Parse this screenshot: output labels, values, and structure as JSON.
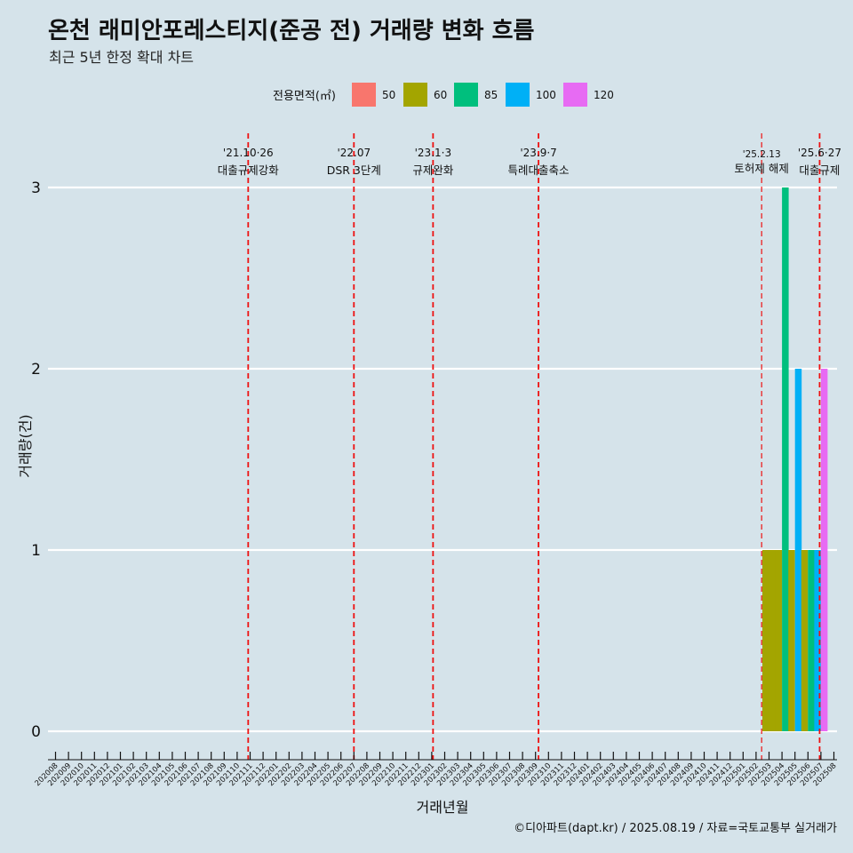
{
  "title": "온천 래미안포레스티지(준공 전) 거래량 변화 흐름",
  "subtitle": "최근 5년 한정 확대 차트",
  "caption": "©디아파트(dapt.kr) / 2025.08.19 / 자료=국토교통부 실거래가",
  "colors": {
    "background": "#d5e3ea",
    "grid": "#ffffff",
    "event_line": "#ee1111"
  },
  "chart_data": {
    "type": "bar",
    "xlabel": "거래년월",
    "ylabel": "거래량(건)",
    "ylim": [
      0,
      3
    ],
    "yticks": [
      0,
      1,
      2,
      3
    ],
    "grid": true,
    "legend": {
      "title": "전용면적(㎡)",
      "position": "top",
      "items": [
        {
          "name": "50",
          "color": "#f8766d"
        },
        {
          "name": "60",
          "color": "#a3a500"
        },
        {
          "name": "85",
          "color": "#00bf7d"
        },
        {
          "name": "100",
          "color": "#00b0f6"
        },
        {
          "name": "120",
          "color": "#e76bf3"
        }
      ]
    },
    "categories": [
      "202008",
      "202009",
      "202010",
      "202011",
      "202012",
      "202101",
      "202102",
      "202103",
      "202104",
      "202105",
      "202106",
      "202107",
      "202108",
      "202109",
      "202110",
      "202111",
      "202112",
      "202201",
      "202202",
      "202203",
      "202204",
      "202205",
      "202206",
      "202207",
      "202208",
      "202209",
      "202210",
      "202211",
      "202212",
      "202301",
      "202302",
      "202303",
      "202304",
      "202305",
      "202306",
      "202307",
      "202308",
      "202309",
      "202310",
      "202311",
      "202312",
      "202401",
      "202402",
      "202403",
      "202404",
      "202405",
      "202406",
      "202407",
      "202408",
      "202409",
      "202410",
      "202411",
      "202412",
      "202501",
      "202502",
      "202503",
      "202504",
      "202505",
      "202506",
      "202507",
      "202508"
    ],
    "bars": [
      {
        "month": "202503",
        "series": "60",
        "value": 1
      },
      {
        "month": "202504",
        "series": "60",
        "value": 1
      },
      {
        "month": "202504",
        "series": "85",
        "value": 3
      },
      {
        "month": "202505",
        "series": "60",
        "value": 1
      },
      {
        "month": "202505",
        "series": "100",
        "value": 2
      },
      {
        "month": "202506",
        "series": "60",
        "value": 1
      },
      {
        "month": "202506",
        "series": "85",
        "value": 1
      },
      {
        "month": "202507",
        "series": "100",
        "value": 1
      },
      {
        "month": "202507",
        "series": "120",
        "value": 2
      }
    ],
    "events": [
      {
        "month": 202110.85,
        "date": "'21.10·26",
        "label": "대출규제강화"
      },
      {
        "month": 202207,
        "date": "'22.07",
        "label": "DSR 3단계"
      },
      {
        "month": 202301.1,
        "date": "'23.1·3",
        "label": "규제완화"
      },
      {
        "month": 202309.23,
        "date": "'23.9·7",
        "label": "특례대출축소"
      },
      {
        "month": 202502.43,
        "date": "'25.2.13",
        "label": "토허제 해제",
        "thin": true
      },
      {
        "month": 202506.9,
        "date": "'25.6·27",
        "label": "대출규제"
      }
    ]
  }
}
